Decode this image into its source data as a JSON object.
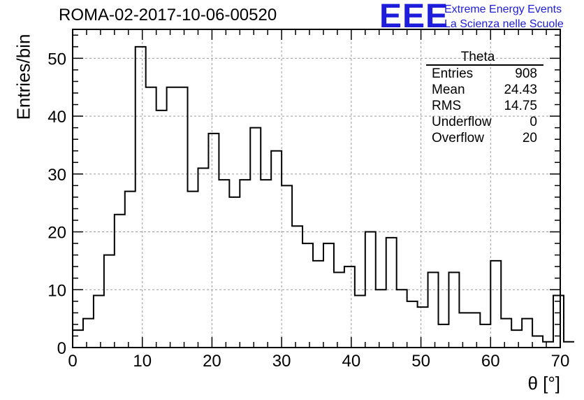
{
  "header": {
    "title": "ROMA-02-2017-10-06-00520",
    "logo_text": "EEE",
    "logo_line1": "Extreme Energy Events",
    "logo_line2": "La Scienza nelle Scuole",
    "logo_color": "#1d1ddb"
  },
  "stats": {
    "name": "Theta",
    "rows": [
      {
        "label": "Entries",
        "value": "908"
      },
      {
        "label": "Mean",
        "value": "24.43"
      },
      {
        "label": "RMS",
        "value": "14.75"
      },
      {
        "label": "Underflow",
        "value": "0"
      },
      {
        "label": "Overflow",
        "value": "20"
      }
    ]
  },
  "chart_data": {
    "type": "bar",
    "histogram": true,
    "title": "ROMA-02-2017-10-06-00520",
    "xlabel": "θ [°]",
    "ylabel": "Entries/bin",
    "xlim": [
      0,
      70
    ],
    "ylim": [
      0,
      55
    ],
    "bin_width": 1.5,
    "bin_start": 0,
    "values": [
      3,
      5,
      9,
      16,
      23,
      27,
      52,
      45,
      41,
      45,
      45,
      27,
      31,
      37,
      29,
      26,
      29,
      38,
      29,
      34,
      28,
      21,
      18,
      15,
      18,
      13,
      14,
      9,
      20,
      10,
      19,
      10,
      8,
      7,
      13,
      4,
      13,
      6,
      6,
      4,
      15,
      5,
      3,
      5,
      2,
      1,
      9,
      1
    ],
    "xticks": [
      0,
      10,
      20,
      30,
      40,
      50,
      60,
      70
    ],
    "yticks": [
      0,
      10,
      20,
      30,
      40,
      50
    ],
    "grid": true,
    "line_color": "#000000"
  }
}
